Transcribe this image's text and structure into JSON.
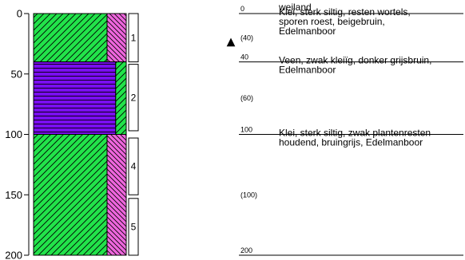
{
  "axis": {
    "ticks": [
      "0",
      "50",
      "100",
      "150",
      "200"
    ]
  },
  "colors": {
    "clay": "#22e34a",
    "peat": "#7a0ef0",
    "accent": "#ee66dd",
    "line": "#000000"
  },
  "column": {
    "top_cm": 0,
    "bottom_cm": 200
  },
  "layers": [
    {
      "from_cm": 0,
      "to_cm": 40,
      "lithology": "clay",
      "side": "accent",
      "side_width": 1.0
    },
    {
      "from_cm": 40,
      "to_cm": 100,
      "lithology": "peat",
      "side": "clay",
      "side_width": 0.55
    },
    {
      "from_cm": 100,
      "to_cm": 200,
      "lithology": "clay",
      "side": "accent",
      "side_width": 1.0
    }
  ],
  "samples": [
    {
      "label": "1",
      "from_cm": 0,
      "to_cm": 40
    },
    {
      "label": "2",
      "from_cm": 42,
      "to_cm": 97
    },
    {
      "label": "4",
      "from_cm": 103,
      "to_cm": 150
    },
    {
      "label": "5",
      "from_cm": 153,
      "to_cm": 200
    }
  ],
  "groundwater": {
    "depth_cm": 20,
    "symbol": "▲"
  },
  "boundaries": [
    {
      "depth_label": "0",
      "depth_cm": 0
    },
    {
      "depth_label": "40",
      "depth_cm": 40
    },
    {
      "depth_label": "100",
      "depth_cm": 100
    },
    {
      "depth_label": "200",
      "depth_cm": 200
    }
  ],
  "midpoints": [
    {
      "label": "(40)",
      "depth_cm": 20
    },
    {
      "label": "(60)",
      "depth_cm": 70
    },
    {
      "label": "(100)",
      "depth_cm": 150
    }
  ],
  "descriptions": [
    {
      "depth_cm": 0,
      "lines": [
        "weiland"
      ]
    },
    {
      "depth_cm": 4,
      "lines": [
        "Klei, sterk siltig, resten wortels,",
        "sporen roest, beigebruin,",
        "Edelmanboor"
      ]
    },
    {
      "depth_cm": 44,
      "lines": [
        "Veen, zwak kleiïg, donker grijsbruin,",
        "Edelmanboor"
      ]
    },
    {
      "depth_cm": 104,
      "lines": [
        "Klei, sterk siltig, zwak plantenresten",
        "houdend, bruingrijs, Edelmanboor"
      ]
    }
  ]
}
